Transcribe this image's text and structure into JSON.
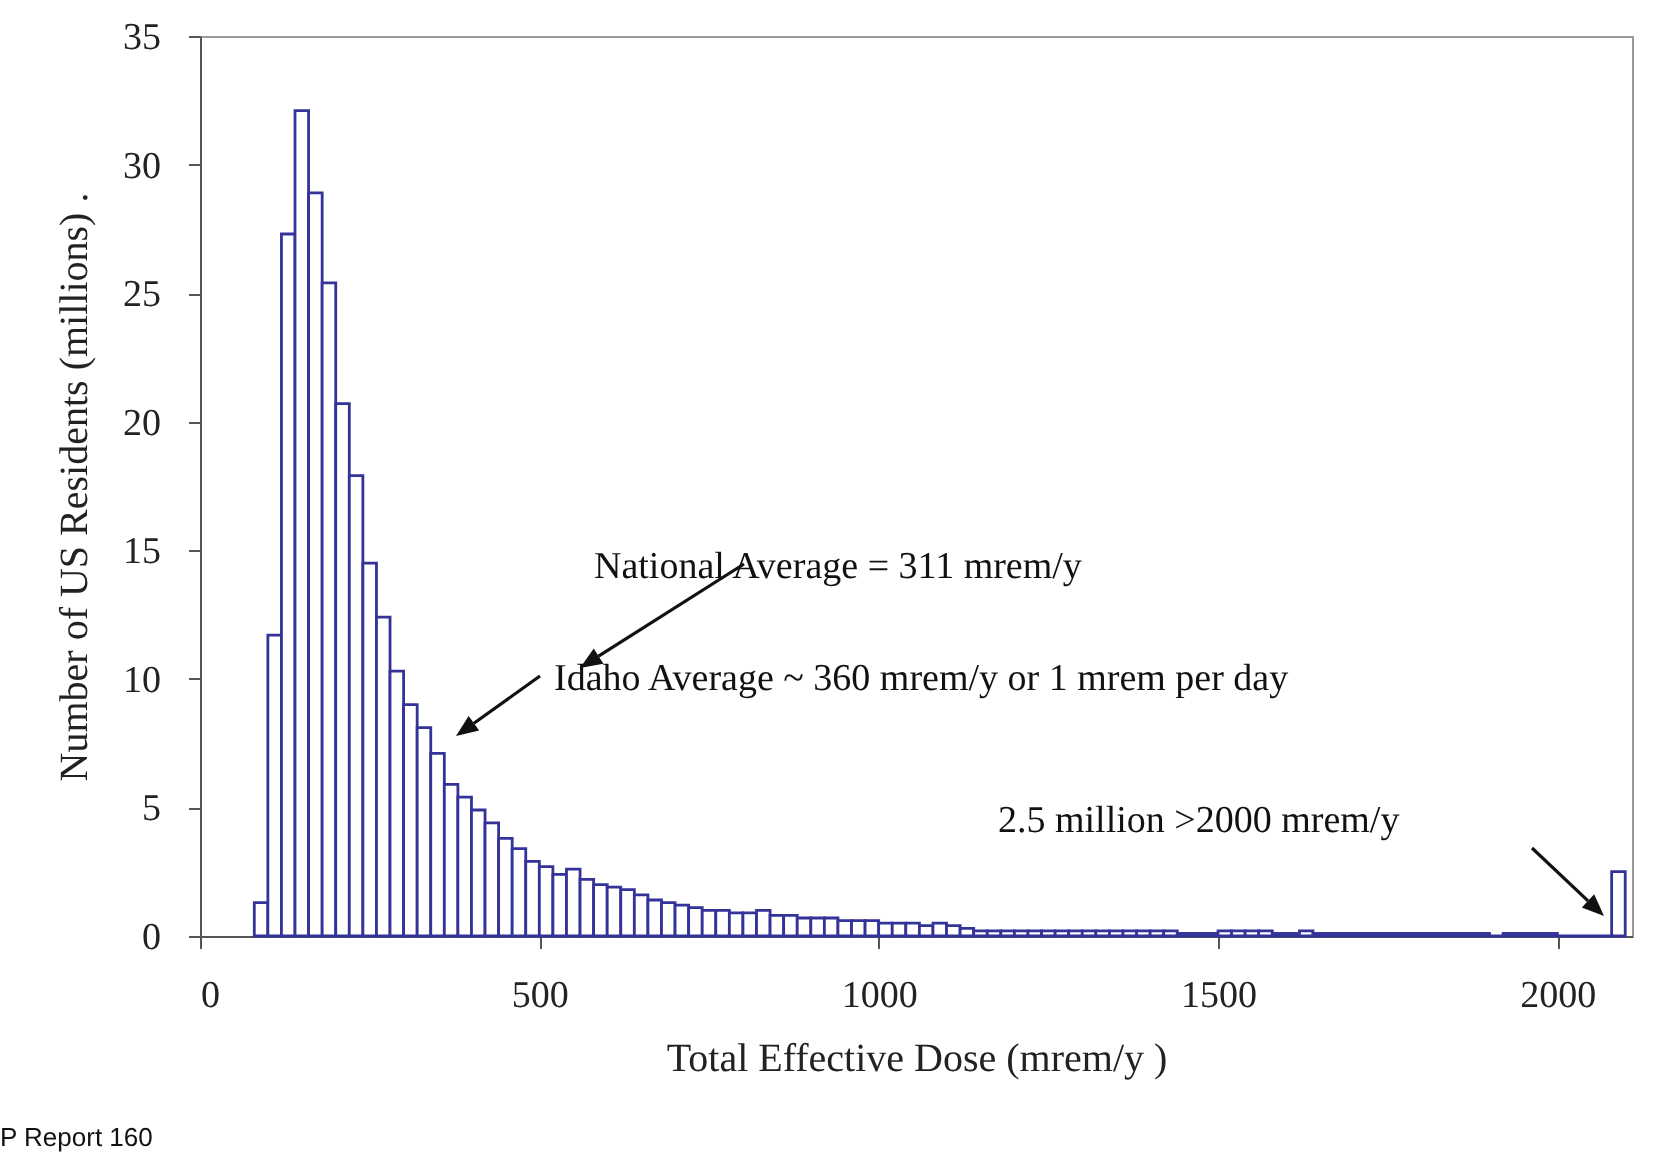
{
  "chart_data": {
    "type": "histogram",
    "xlabel": "Total Effective Dose (mrem/y )",
    "ylabel": "Number of US Residents (millions) .",
    "annotations": [
      "National Average = 311 mrem/y",
      "Idaho Average ~ 360 mrem/y or 1 mrem per day",
      "2.5 million >2000 mrem/y",
      "P Report 160"
    ],
    "bins": [
      80,
      100,
      120,
      140,
      160,
      180,
      200,
      220,
      240,
      260,
      280,
      300,
      320,
      340,
      360,
      380,
      400,
      420,
      440,
      460,
      480,
      500,
      520,
      540,
      560,
      580,
      600,
      620,
      640,
      660,
      680,
      700,
      720,
      740,
      760,
      780,
      800,
      820,
      840,
      860,
      880,
      900,
      920,
      940,
      960,
      980,
      1000,
      1020,
      1040,
      1060,
      1080,
      1100,
      1120,
      1140,
      1160,
      1180,
      1200,
      1220,
      1240,
      1260,
      1280,
      1300,
      1320,
      1340,
      1360,
      1380,
      1400,
      1420,
      1440,
      1460,
      1480,
      1500,
      1520,
      1540,
      1560,
      1580,
      1600,
      1620,
      1640,
      1660,
      1680,
      1700,
      1720,
      1740,
      1760,
      1780,
      1800,
      1820,
      1840,
      1860,
      1880,
      1900,
      1920,
      1940,
      1960,
      1980,
      2000,
      2080,
      2100
    ],
    "values": [
      1.3,
      11.7,
      27.3,
      32.1,
      28.9,
      25.4,
      20.7,
      17.9,
      14.5,
      12.4,
      10.3,
      9.0,
      8.1,
      7.1,
      5.9,
      5.4,
      4.9,
      4.4,
      3.8,
      3.4,
      2.9,
      2.7,
      2.4,
      2.6,
      2.2,
      2.0,
      1.9,
      1.8,
      1.6,
      1.4,
      1.3,
      1.2,
      1.1,
      1.0,
      1.0,
      0.9,
      0.9,
      1.0,
      0.8,
      0.8,
      0.7,
      0.7,
      0.7,
      0.6,
      0.6,
      0.6,
      0.5,
      0.5,
      0.5,
      0.4,
      0.5,
      0.4,
      0.3,
      0.2,
      0.2,
      0.2,
      0.2,
      0.2,
      0.2,
      0.2,
      0.2,
      0.2,
      0.2,
      0.2,
      0.2,
      0.2,
      0.2,
      0.2,
      0.1,
      0.1,
      0.1,
      0.2,
      0.2,
      0.2,
      0.2,
      0.1,
      0.1,
      0.2,
      0.1,
      0.1,
      0.1,
      0.1,
      0.1,
      0.1,
      0.1,
      0.1,
      0.1,
      0.1,
      0.1,
      0.1,
      0.1,
      0,
      0.1,
      0.1,
      0.1,
      0.1,
      0,
      2.5
    ],
    "color": "#33339a",
    "xlim": [
      0,
      2110
    ],
    "xticks": [
      0,
      500,
      1000,
      1500,
      2000
    ],
    "ylim": [
      0,
      35
    ],
    "yticks": [
      0,
      5,
      10,
      15,
      20,
      25,
      30,
      35
    ],
    "grid": false
  }
}
